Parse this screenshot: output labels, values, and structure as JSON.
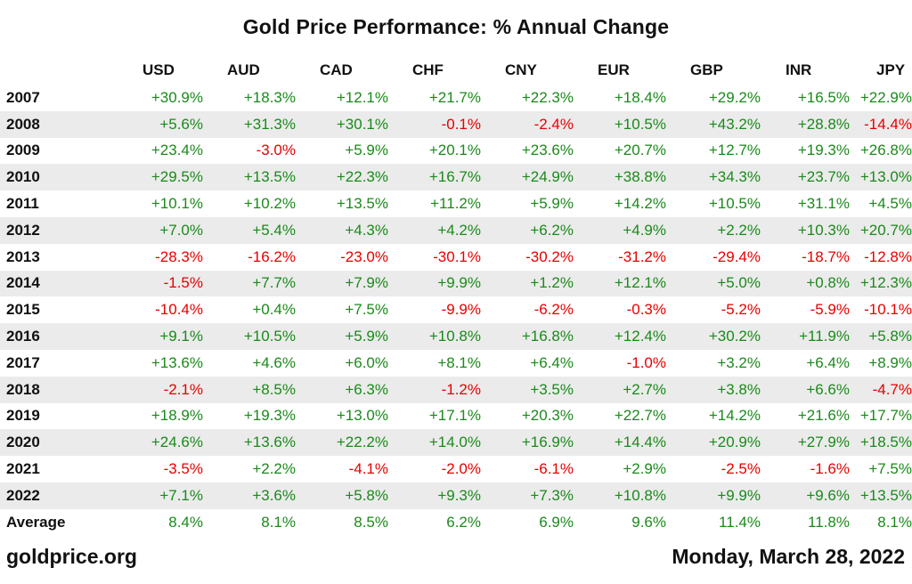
{
  "chart_data": {
    "type": "table",
    "title": "Gold Price Performance: % Annual Change",
    "columns": [
      "USD",
      "AUD",
      "CAD",
      "CHF",
      "CNY",
      "EUR",
      "GBP",
      "INR",
      "JPY"
    ],
    "rows": [
      {
        "year": "2007",
        "values": [
          "+30.9%",
          "+18.3%",
          "+12.1%",
          "+21.7%",
          "+22.3%",
          "+18.4%",
          "+29.2%",
          "+16.5%",
          "+22.9%"
        ]
      },
      {
        "year": "2008",
        "values": [
          "+5.6%",
          "+31.3%",
          "+30.1%",
          "-0.1%",
          "-2.4%",
          "+10.5%",
          "+43.2%",
          "+28.8%",
          "-14.4%"
        ]
      },
      {
        "year": "2009",
        "values": [
          "+23.4%",
          "-3.0%",
          "+5.9%",
          "+20.1%",
          "+23.6%",
          "+20.7%",
          "+12.7%",
          "+19.3%",
          "+26.8%"
        ]
      },
      {
        "year": "2010",
        "values": [
          "+29.5%",
          "+13.5%",
          "+22.3%",
          "+16.7%",
          "+24.9%",
          "+38.8%",
          "+34.3%",
          "+23.7%",
          "+13.0%"
        ]
      },
      {
        "year": "2011",
        "values": [
          "+10.1%",
          "+10.2%",
          "+13.5%",
          "+11.2%",
          "+5.9%",
          "+14.2%",
          "+10.5%",
          "+31.1%",
          "+4.5%"
        ]
      },
      {
        "year": "2012",
        "values": [
          "+7.0%",
          "+5.4%",
          "+4.3%",
          "+4.2%",
          "+6.2%",
          "+4.9%",
          "+2.2%",
          "+10.3%",
          "+20.7%"
        ]
      },
      {
        "year": "2013",
        "values": [
          "-28.3%",
          "-16.2%",
          "-23.0%",
          "-30.1%",
          "-30.2%",
          "-31.2%",
          "-29.4%",
          "-18.7%",
          "-12.8%"
        ]
      },
      {
        "year": "2014",
        "values": [
          "-1.5%",
          "+7.7%",
          "+7.9%",
          "+9.9%",
          "+1.2%",
          "+12.1%",
          "+5.0%",
          "+0.8%",
          "+12.3%"
        ]
      },
      {
        "year": "2015",
        "values": [
          "-10.4%",
          "+0.4%",
          "+7.5%",
          "-9.9%",
          "-6.2%",
          "-0.3%",
          "-5.2%",
          "-5.9%",
          "-10.1%"
        ]
      },
      {
        "year": "2016",
        "values": [
          "+9.1%",
          "+10.5%",
          "+5.9%",
          "+10.8%",
          "+16.8%",
          "+12.4%",
          "+30.2%",
          "+11.9%",
          "+5.8%"
        ]
      },
      {
        "year": "2017",
        "values": [
          "+13.6%",
          "+4.6%",
          "+6.0%",
          "+8.1%",
          "+6.4%",
          "-1.0%",
          "+3.2%",
          "+6.4%",
          "+8.9%"
        ]
      },
      {
        "year": "2018",
        "values": [
          "-2.1%",
          "+8.5%",
          "+6.3%",
          "-1.2%",
          "+3.5%",
          "+2.7%",
          "+3.8%",
          "+6.6%",
          "-4.7%"
        ]
      },
      {
        "year": "2019",
        "values": [
          "+18.9%",
          "+19.3%",
          "+13.0%",
          "+17.1%",
          "+20.3%",
          "+22.7%",
          "+14.2%",
          "+21.6%",
          "+17.7%"
        ]
      },
      {
        "year": "2020",
        "values": [
          "+24.6%",
          "+13.6%",
          "+22.2%",
          "+14.0%",
          "+16.9%",
          "+14.4%",
          "+20.9%",
          "+27.9%",
          "+18.5%"
        ]
      },
      {
        "year": "2021",
        "values": [
          "-3.5%",
          "+2.2%",
          "-4.1%",
          "-2.0%",
          "-6.1%",
          "+2.9%",
          "-2.5%",
          "-1.6%",
          "+7.5%"
        ]
      },
      {
        "year": "2022",
        "values": [
          "+7.1%",
          "+3.6%",
          "+5.8%",
          "+9.3%",
          "+7.3%",
          "+10.8%",
          "+9.9%",
          "+9.6%",
          "+13.5%"
        ]
      }
    ],
    "average": {
      "label": "Average",
      "values": [
        "8.4%",
        "8.1%",
        "8.5%",
        "6.2%",
        "6.9%",
        "9.6%",
        "11.4%",
        "11.8%",
        "8.1%"
      ]
    },
    "colors": {
      "positive": "#1a8a1a",
      "negative": "#e60000",
      "stripe": "#ebebeb"
    }
  },
  "footer": {
    "source": "goldprice.org",
    "date": "Monday, March 28, 2022"
  }
}
